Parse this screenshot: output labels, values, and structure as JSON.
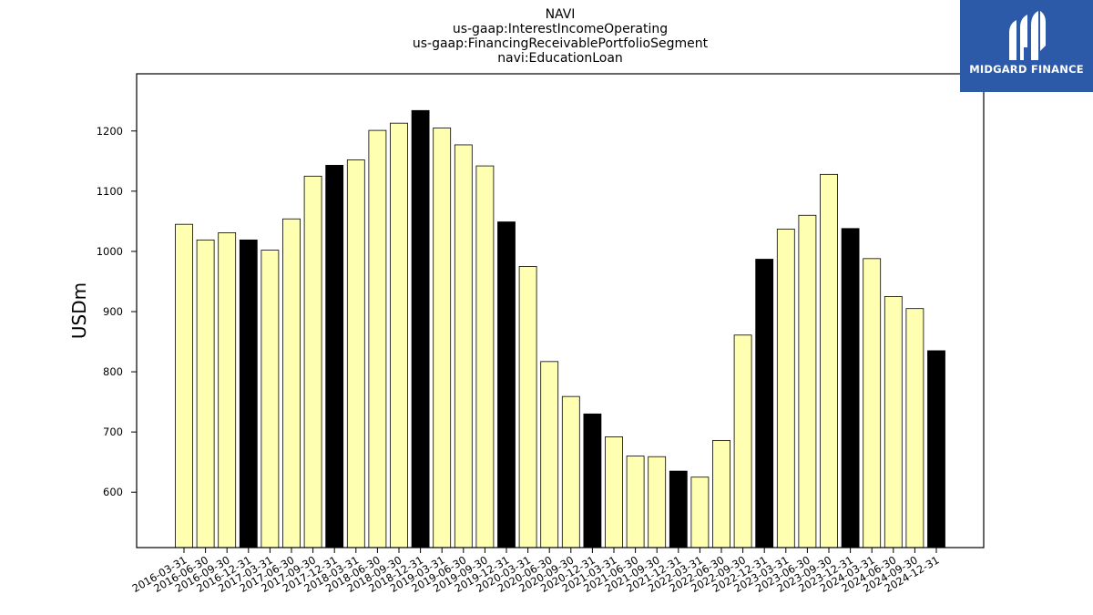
{
  "chart_data": {
    "type": "bar",
    "title_lines": [
      "NAVI",
      "us-gaap:InterestIncomeOperating",
      "us-gaap:FinancingReceivablePortfolioSegment",
      "navi:EducationLoan"
    ],
    "ylabel": "USDm",
    "xlabel": "",
    "ylim": [
      508,
      1295
    ],
    "yticks": [
      600,
      700,
      800,
      900,
      1000,
      1100,
      1200
    ],
    "categories": [
      "2016-03-31",
      "2016-06-30",
      "2016-09-30",
      "2016-12-31",
      "2017-03-31",
      "2017-06-30",
      "2017-09-30",
      "2017-12-31",
      "2018-03-31",
      "2018-06-30",
      "2018-09-30",
      "2018-12-31",
      "2019-03-31",
      "2019-06-30",
      "2019-09-30",
      "2019-12-31",
      "2020-03-31",
      "2020-06-30",
      "2020-09-30",
      "2020-12-31",
      "2021-03-31",
      "2021-06-30",
      "2021-09-30",
      "2021-12-31",
      "2022-03-31",
      "2022-06-30",
      "2022-09-30",
      "2022-12-31",
      "2023-03-31",
      "2023-06-30",
      "2023-09-30",
      "2023-12-31",
      "2024-03-31",
      "2024-06-30",
      "2024-09-30",
      "2024-12-31"
    ],
    "values": [
      1045,
      1019,
      1031,
      1019,
      1002,
      1054,
      1125,
      1143,
      1152,
      1201,
      1213,
      1234,
      1205,
      1177,
      1142,
      1049,
      975,
      817,
      759,
      730,
      692,
      660,
      659,
      635,
      625,
      686,
      861,
      987,
      1037,
      1060,
      1128,
      1038,
      988,
      925,
      905,
      835
    ],
    "colors": {
      "quarter_bar": "#ffffb2",
      "year_end_bar": "#000000",
      "bar_edge": "#000000"
    },
    "grid": false,
    "legend": "none"
  },
  "logo": {
    "text": "MIDGARD FINANCE",
    "background": "#2d5aa8"
  }
}
